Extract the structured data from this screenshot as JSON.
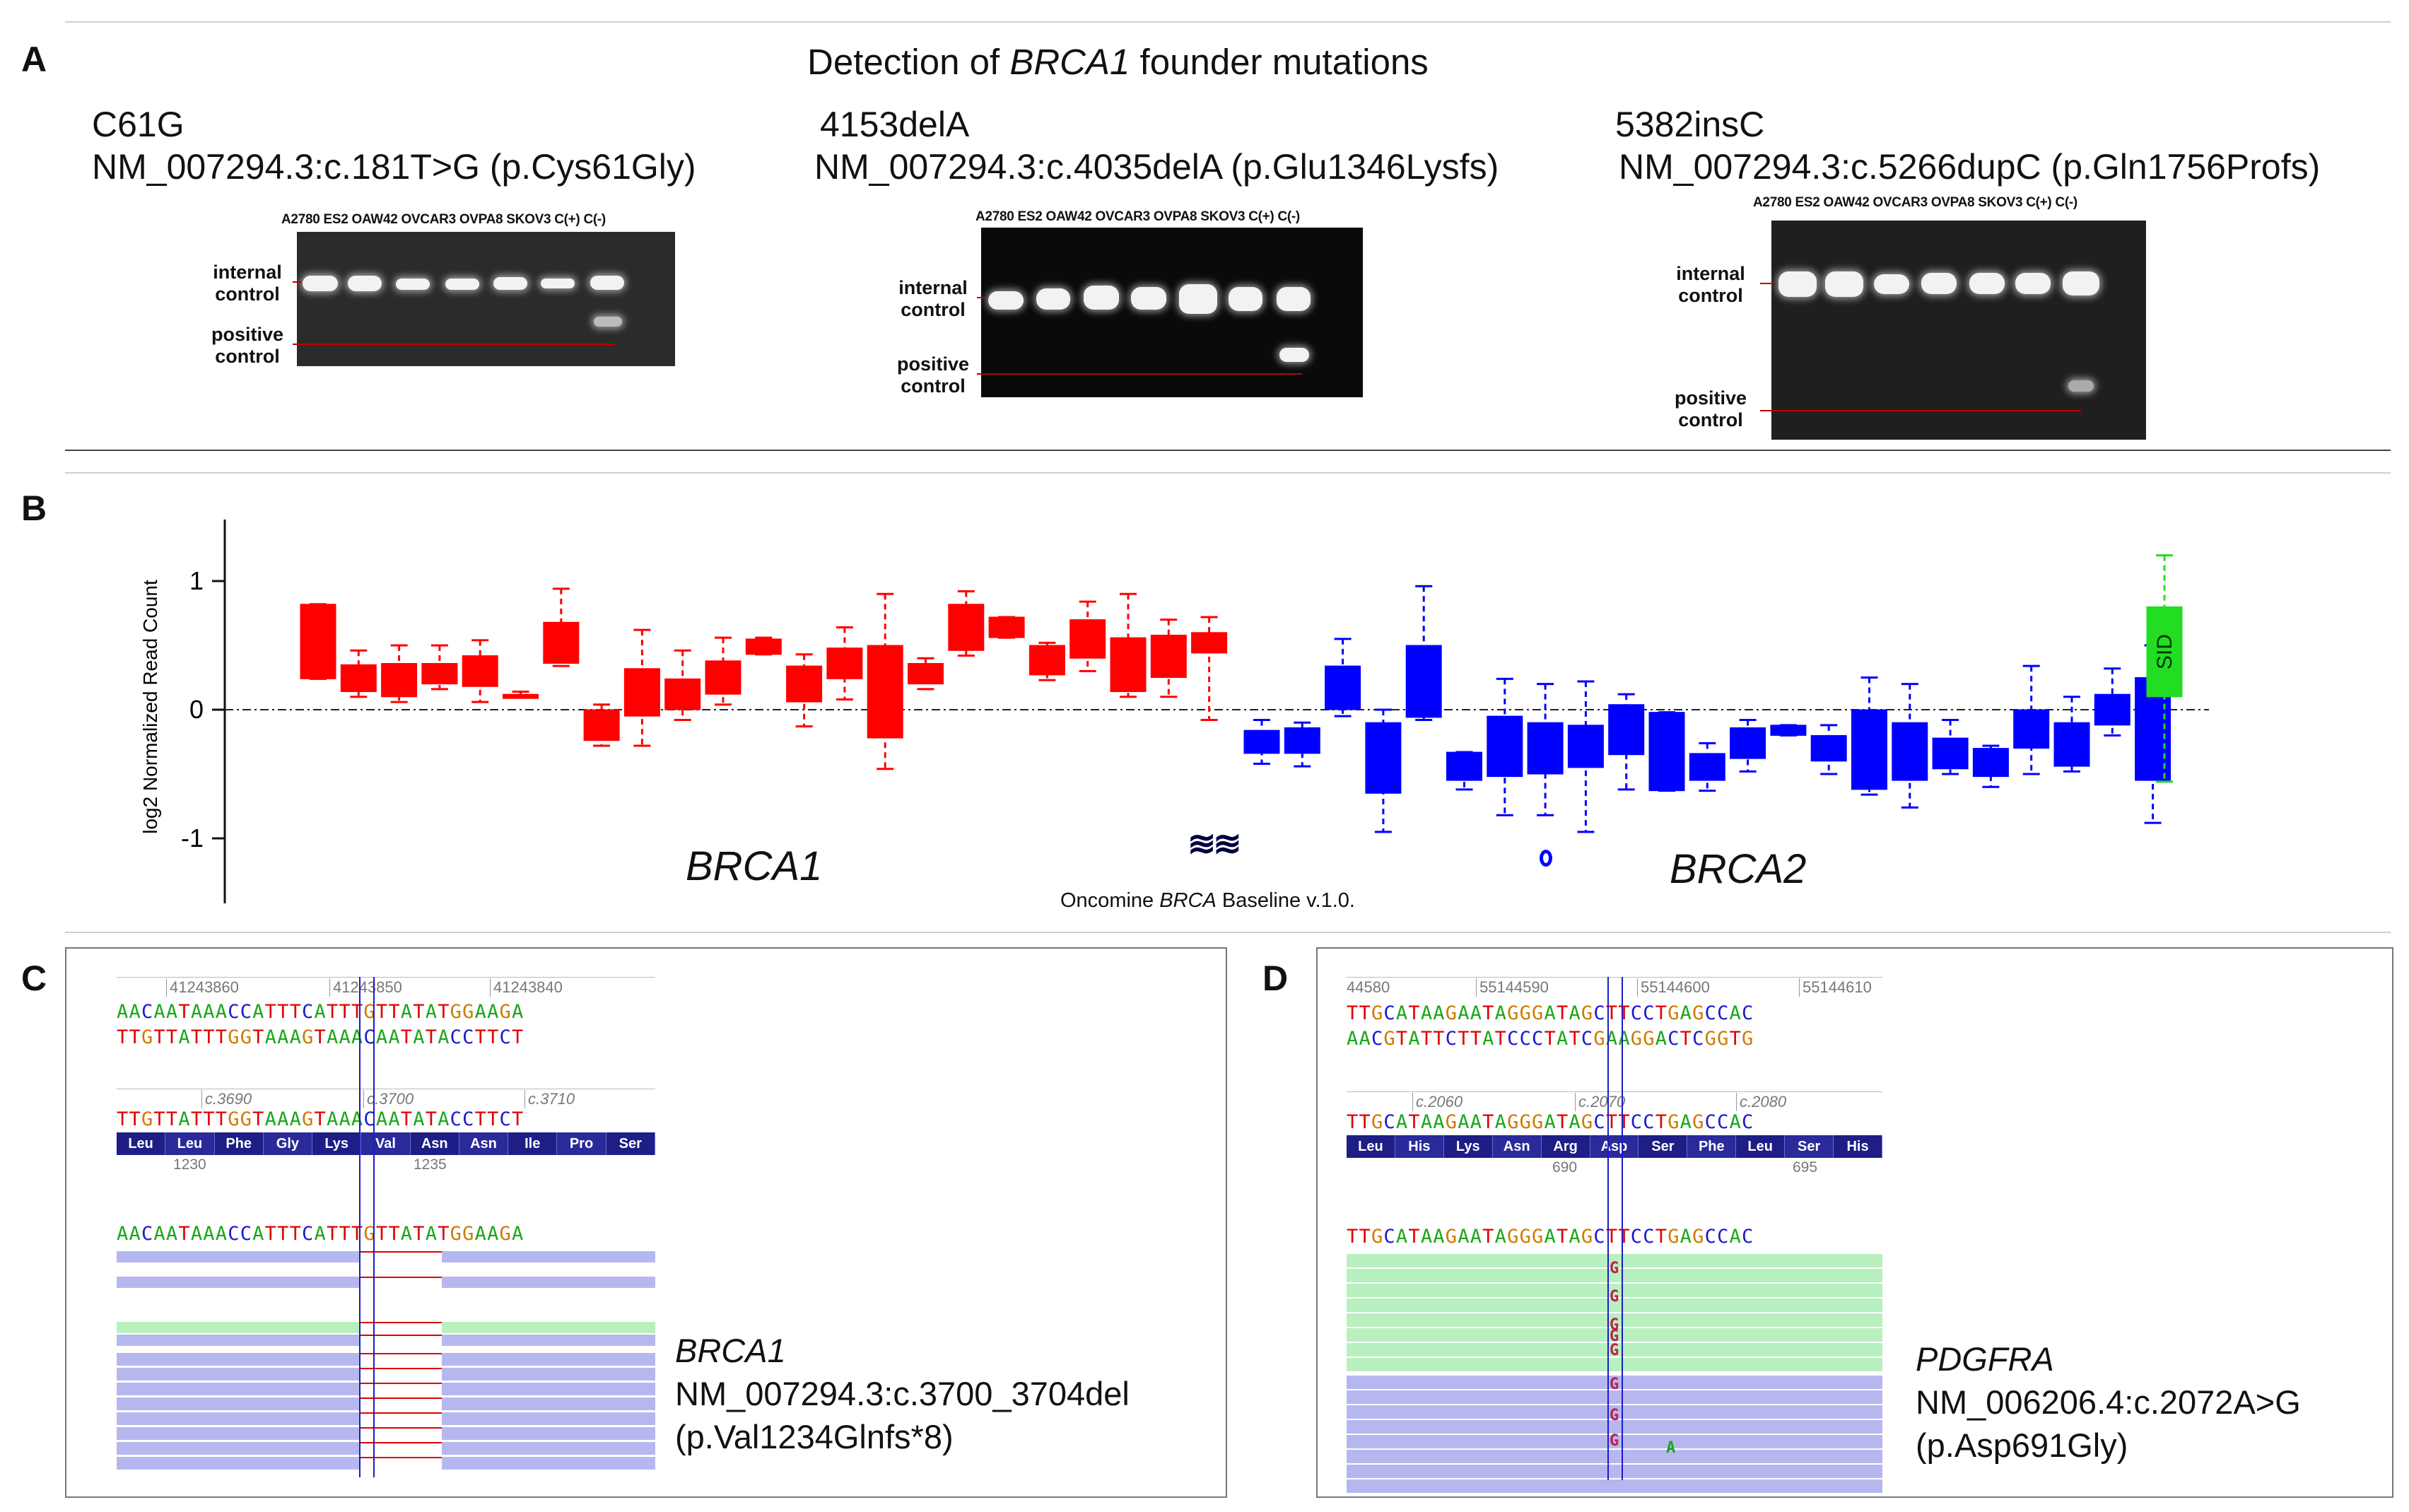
{
  "panelA": {
    "letter": "A",
    "title_pre": "Detection of ",
    "title_gene": "BRCA1",
    "title_post": " founder mutations",
    "gels": [
      {
        "mutation": "C61G",
        "hgvs": "NM_007294.3:c.181T>G (p.Cys61Gly)",
        "lanes": "A2780 ES2 OAW42 OVCAR3 OVPA8 SKOV3 C(+) C(-)",
        "label_internal": "internal control",
        "label_positive": "positive control"
      },
      {
        "mutation": "4153delA",
        "hgvs": "NM_007294.3:c.4035delA (p.Glu1346Lysfs)",
        "lanes": "A2780 ES2 OAW42 OVCAR3 OVPA8 SKOV3 C(+) C(-)",
        "label_internal": "internal control",
        "label_positive": "positive control"
      },
      {
        "mutation": "5382insC",
        "hgvs": "NM_007294.3:c.5266dupC (p.Gln1756Profs)",
        "lanes": "A2780 ES2 OAW42 OVCAR3 OVPA8 SKOV3 C(+) C(-)",
        "label_internal": "internal control",
        "label_positive": "positive control"
      }
    ]
  },
  "panelB": {
    "letter": "B",
    "gene1": "BRCA1",
    "gene2": "BRCA2",
    "footer_pre": "Oncomine ",
    "footer_gene": "BRCA",
    "footer_post": " Baseline v.1.0.",
    "sid_label": "SID"
  },
  "chart_data": {
    "type": "box",
    "ylabel": "log2 Normalized Read Count",
    "yticks": [
      -1,
      0,
      1
    ],
    "ylim": [
      -1.5,
      1.45
    ],
    "reference_line": 0,
    "colors": {
      "BRCA1": "#ff0000",
      "BRCA2": "#0000ff",
      "SID": "#22dd22"
    },
    "series": [
      {
        "name": "BRCA1",
        "boxes": [
          [
            0.24,
            0.24,
            0.82,
            0.82
          ],
          [
            0.1,
            0.14,
            0.35,
            0.46
          ],
          [
            0.06,
            0.1,
            0.36,
            0.5
          ],
          [
            0.16,
            0.2,
            0.36,
            0.5
          ],
          [
            0.06,
            0.18,
            0.42,
            0.54
          ],
          [
            0.1,
            0.1,
            0.12,
            0.14
          ],
          [
            0.34,
            0.36,
            0.68,
            0.94
          ],
          [
            -0.28,
            -0.24,
            0.0,
            0.04
          ],
          [
            -0.28,
            -0.05,
            0.32,
            0.62
          ],
          [
            -0.08,
            0.0,
            0.24,
            0.46
          ],
          [
            0.04,
            0.12,
            0.38,
            0.56
          ],
          [
            0.43,
            0.43,
            0.55,
            0.56
          ],
          [
            -0.13,
            0.06,
            0.34,
            0.43
          ],
          [
            0.08,
            0.24,
            0.48,
            0.64
          ],
          [
            -0.46,
            -0.22,
            0.5,
            0.9
          ],
          [
            0.16,
            0.2,
            0.36,
            0.4
          ],
          [
            0.42,
            0.46,
            0.82,
            0.92
          ],
          [
            0.56,
            0.56,
            0.72,
            0.72
          ],
          [
            0.23,
            0.27,
            0.5,
            0.52
          ],
          [
            0.3,
            0.4,
            0.7,
            0.84
          ],
          [
            0.1,
            0.14,
            0.56,
            0.9
          ],
          [
            0.1,
            0.25,
            0.58,
            0.7
          ],
          [
            -0.08,
            0.44,
            0.6,
            0.72
          ]
        ]
      },
      {
        "name": "BRCA2",
        "boxes": [
          [
            -0.42,
            -0.34,
            -0.16,
            -0.08
          ],
          [
            -0.44,
            -0.34,
            -0.14,
            -0.1
          ],
          [
            -0.05,
            0.0,
            0.34,
            0.55
          ],
          [
            -0.95,
            -0.65,
            -0.1,
            0.0
          ],
          [
            -0.08,
            -0.06,
            0.5,
            0.96
          ],
          [
            -0.62,
            -0.55,
            -0.33,
            -0.33
          ],
          [
            -0.82,
            -0.52,
            -0.05,
            0.24
          ],
          [
            -0.82,
            -0.5,
            -0.1,
            0.2
          ],
          [
            -0.95,
            -0.45,
            -0.12,
            0.22
          ],
          [
            -0.62,
            -0.35,
            0.04,
            0.12
          ],
          [
            -0.63,
            -0.63,
            -0.02,
            -0.02
          ],
          [
            -0.63,
            -0.55,
            -0.34,
            -0.26
          ],
          [
            -0.48,
            -0.38,
            -0.14,
            -0.08
          ],
          [
            -0.2,
            -0.2,
            -0.12,
            -0.12
          ],
          [
            -0.5,
            -0.4,
            -0.2,
            -0.12
          ],
          [
            -0.66,
            -0.62,
            0.0,
            0.25
          ],
          [
            -0.76,
            -0.55,
            -0.1,
            0.2
          ],
          [
            -0.5,
            -0.46,
            -0.22,
            -0.08
          ],
          [
            -0.6,
            -0.52,
            -0.3,
            -0.28
          ],
          [
            -0.5,
            -0.3,
            0.0,
            0.34
          ],
          [
            -0.48,
            -0.44,
            -0.1,
            0.1
          ],
          [
            -0.2,
            -0.12,
            0.12,
            0.32
          ],
          [
            -0.88,
            -0.55,
            0.25,
            0.5
          ]
        ]
      },
      {
        "name": "SID",
        "boxes": [
          [
            -0.56,
            0.1,
            0.8,
            1.2
          ]
        ]
      }
    ]
  },
  "panelC": {
    "letter": "C",
    "coords": [
      "41243860",
      "41243850",
      "41243840"
    ],
    "ref_top": "AACAATAAACCATTTCATTTGTTATATGGAAGA",
    "ref_comp": "TTGTTATTTGGTAAAGTAAACAATATACCTTCT",
    "cdna_ticks": [
      "c.3690",
      "c.3700",
      "c.3710"
    ],
    "cdna_seq": "TTGTTATTTGGTAAAGTAAACAATATACCTTCT",
    "aa": [
      "Leu",
      "Leu",
      "Phe",
      "Gly",
      "Lys",
      "Val",
      "Asn",
      "Asn",
      "Ile",
      "Pro",
      "Ser"
    ],
    "aa_pos": [
      "1230",
      "1235"
    ],
    "consensus": "AACAATAAACCATTTCATTTGTTATATGGAAGA",
    "caption_gene": "BRCA1",
    "caption_hgvs": "NM_007294.3:c.3700_3704del",
    "caption_protein": "(p.Val1234Glnfs*8)"
  },
  "panelD": {
    "letter": "D",
    "coords": [
      "44580",
      "55144590",
      "55144600",
      "55144610"
    ],
    "ref_top": "TTGCATAAGAATAGGGATAGCTTCCTGAGCCAC",
    "ref_comp": "AACGTATTCTTATCCCTATCGAAGGACTCGGTG",
    "cdna_ticks": [
      "c.2060",
      "c.2070",
      "c.2080"
    ],
    "cdna_seq": "TTGCATAAGAATAGGGATAGCTTCCTGAGCCAC",
    "aa": [
      "Leu",
      "His",
      "Lys",
      "Asn",
      "Arg",
      "Asp",
      "Ser",
      "Phe",
      "Leu",
      "Ser",
      "His"
    ],
    "aa_pos": [
      "690",
      "695"
    ],
    "consensus": "TTGCATAAGAATAGGGATAGCTTCCTGAGCCAC",
    "read_letters": [
      "G",
      "G",
      "G",
      "G",
      "G",
      "G",
      "G",
      "G",
      "A"
    ],
    "caption_gene": "PDGFRA",
    "caption_hgvs": "NM_006206.4:c.2072A>G",
    "caption_protein": "(p.Asp691Gly)"
  }
}
